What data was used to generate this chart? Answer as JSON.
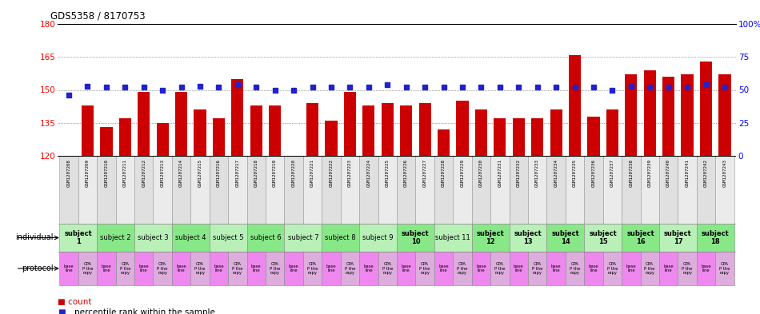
{
  "title": "GDS5358 / 8170753",
  "samples": [
    "GSM1207208",
    "GSM1207209",
    "GSM1207210",
    "GSM1207211",
    "GSM1207212",
    "GSM1207213",
    "GSM1207214",
    "GSM1207215",
    "GSM1207216",
    "GSM1207217",
    "GSM1207218",
    "GSM1207219",
    "GSM1207220",
    "GSM1207221",
    "GSM1207222",
    "GSM1207223",
    "GSM1207224",
    "GSM1207225",
    "GSM1207226",
    "GSM1207227",
    "GSM1207228",
    "GSM1207229",
    "GSM1207230",
    "GSM1207231",
    "GSM1207232",
    "GSM1207233",
    "GSM1207234",
    "GSM1207235",
    "GSM1207236",
    "GSM1207237",
    "GSM1207238",
    "GSM1207239",
    "GSM1207240",
    "GSM1207241",
    "GSM1207242",
    "GSM1207243"
  ],
  "counts": [
    120,
    143,
    133,
    137,
    149,
    135,
    149,
    141,
    137,
    155,
    143,
    143,
    120,
    144,
    136,
    149,
    143,
    144,
    143,
    144,
    132,
    145,
    141,
    137,
    137,
    137,
    141,
    166,
    138,
    141,
    157,
    159,
    156,
    157,
    163,
    157
  ],
  "percentiles": [
    46,
    53,
    52,
    52,
    52,
    50,
    52,
    53,
    52,
    54,
    52,
    50,
    50,
    52,
    52,
    52,
    52,
    54,
    52,
    52,
    52,
    52,
    52,
    52,
    52,
    52,
    52,
    52,
    52,
    50,
    53,
    52,
    52,
    52,
    54,
    52
  ],
  "ylim_left": [
    120,
    180
  ],
  "ylim_right": [
    0,
    100
  ],
  "yticks_left": [
    120,
    135,
    150,
    165,
    180
  ],
  "yticks_right": [
    0,
    25,
    50,
    75,
    100
  ],
  "subjects": [
    {
      "label": "subject\n1",
      "start": 0,
      "end": 2,
      "bold": true
    },
    {
      "label": "subject 2",
      "start": 2,
      "end": 4,
      "bold": false
    },
    {
      "label": "subject 3",
      "start": 4,
      "end": 6,
      "bold": false
    },
    {
      "label": "subject 4",
      "start": 6,
      "end": 8,
      "bold": false
    },
    {
      "label": "subject 5",
      "start": 8,
      "end": 10,
      "bold": false
    },
    {
      "label": "subject 6",
      "start": 10,
      "end": 12,
      "bold": false
    },
    {
      "label": "subject 7",
      "start": 12,
      "end": 14,
      "bold": false
    },
    {
      "label": "subject 8",
      "start": 14,
      "end": 16,
      "bold": false
    },
    {
      "label": "subject 9",
      "start": 16,
      "end": 18,
      "bold": false
    },
    {
      "label": "subject\n10",
      "start": 18,
      "end": 20,
      "bold": true
    },
    {
      "label": "subject 11",
      "start": 20,
      "end": 22,
      "bold": false
    },
    {
      "label": "subject\n12",
      "start": 22,
      "end": 24,
      "bold": true
    },
    {
      "label": "subject\n13",
      "start": 24,
      "end": 26,
      "bold": true
    },
    {
      "label": "subject\n14",
      "start": 26,
      "end": 28,
      "bold": true
    },
    {
      "label": "subject\n15",
      "start": 28,
      "end": 30,
      "bold": true
    },
    {
      "label": "subject\n16",
      "start": 30,
      "end": 32,
      "bold": true
    },
    {
      "label": "subject\n17",
      "start": 32,
      "end": 34,
      "bold": true
    },
    {
      "label": "subject\n18",
      "start": 34,
      "end": 36,
      "bold": true
    }
  ],
  "bar_color": "#cc0000",
  "dot_color": "#2222cc",
  "grid_color": "#555555",
  "gsm_bg_colors": [
    "#e0e0e0",
    "#ebebeb"
  ],
  "subj_color_light": "#b8f0b8",
  "subj_color_mid": "#88e888",
  "prot_color_base": "#ee88ee",
  "prot_color_cpa": "#ddaedd"
}
